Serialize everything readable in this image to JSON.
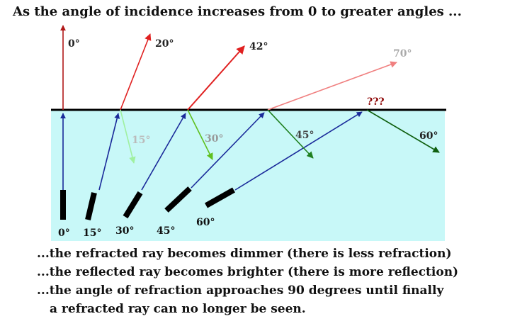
{
  "title": "As the angle of incidence increases from 0 to greater angles ...",
  "incidence_labels": [
    "0°",
    "15°",
    "30°",
    "45°",
    "60°"
  ],
  "refracted_labels": [
    "0°",
    "20°",
    "42°",
    "70°",
    "???"
  ],
  "reflected_labels": [
    "15°",
    "30°",
    "45°",
    "60°"
  ],
  "notes": [
    "...the refracted ray becomes dimmer (there is less refraction)",
    "...the reflected ray becomes brighter (there is more reflection)",
    "...the angle of refraction approaches 90 degrees until finally",
    "a refracted ray can no longer be seen."
  ],
  "colors": {
    "water": "#c8f8f8",
    "incident": "#1a2a9a",
    "refracted": [
      "#b01818",
      "#e02020",
      "#e02020",
      "#f08080"
    ],
    "reflected": [
      "#a0f0a0",
      "#60c020",
      "#208020",
      "#106010"
    ]
  }
}
